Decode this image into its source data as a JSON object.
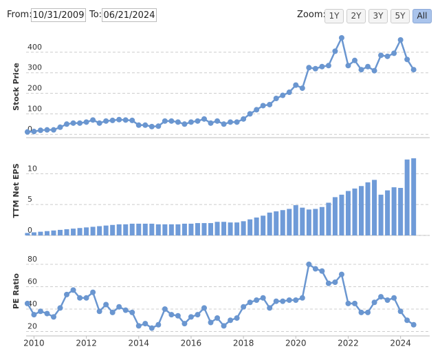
{
  "controls": {
    "from_label": "From:",
    "from": "10/31/2009",
    "to_label": "To:",
    "to": "06/21/2024",
    "zoom_label": "Zoom:",
    "zoom": [
      "1Y",
      "2Y",
      "3Y",
      "5Y",
      "All"
    ],
    "zoom_active": "All"
  },
  "chart_data": [
    {
      "type": "line",
      "y_label": "Stock Price",
      "color": "#6a96d0",
      "x": [
        2009.75,
        2010,
        2010.25,
        2010.5,
        2010.75,
        2011,
        2011.25,
        2011.5,
        2011.75,
        2012,
        2012.25,
        2012.5,
        2012.75,
        2013,
        2013.25,
        2013.5,
        2013.75,
        2014,
        2014.25,
        2014.5,
        2014.75,
        2015,
        2015.25,
        2015.5,
        2015.75,
        2016,
        2016.25,
        2016.5,
        2016.75,
        2017,
        2017.25,
        2017.5,
        2017.75,
        2018,
        2018.25,
        2018.5,
        2018.75,
        2019,
        2019.25,
        2019.5,
        2019.75,
        2020,
        2020.25,
        2020.5,
        2020.75,
        2021,
        2021.25,
        2021.5,
        2021.75,
        2022,
        2022.25,
        2022.5,
        2022.75,
        2023,
        2023.25,
        2023.5,
        2023.75,
        2024,
        2024.25,
        2024.5
      ],
      "values": [
        12,
        14,
        20,
        22,
        22,
        35,
        50,
        55,
        55,
        60,
        70,
        55,
        65,
        68,
        72,
        70,
        68,
        45,
        45,
        38,
        40,
        65,
        65,
        60,
        50,
        60,
        65,
        75,
        55,
        65,
        50,
        60,
        60,
        75,
        100,
        120,
        140,
        145,
        175,
        190,
        205,
        240,
        225,
        325,
        320,
        330,
        335,
        405,
        470,
        335,
        360,
        315,
        330,
        310,
        385,
        380,
        395,
        460,
        365,
        315
      ],
      "xlim": [
        2009.7,
        2024.85
      ],
      "ylim": [
        -16,
        480
      ],
      "yticks": [
        0,
        100,
        200,
        300,
        400
      ],
      "grid": true
    },
    {
      "type": "bar",
      "y_label": "TTM Net EPS",
      "color": "#6f9bd8",
      "x": [
        2009.75,
        2010,
        2010.25,
        2010.5,
        2010.75,
        2011,
        2011.25,
        2011.5,
        2011.75,
        2012,
        2012.25,
        2012.5,
        2012.75,
        2013,
        2013.25,
        2013.5,
        2013.75,
        2014,
        2014.25,
        2014.5,
        2014.75,
        2015,
        2015.25,
        2015.5,
        2015.75,
        2016,
        2016.25,
        2016.5,
        2016.75,
        2017,
        2017.25,
        2017.5,
        2017.75,
        2018,
        2018.25,
        2018.5,
        2018.75,
        2019,
        2019.25,
        2019.5,
        2019.75,
        2020,
        2020.25,
        2020.5,
        2020.75,
        2021,
        2021.25,
        2021.5,
        2021.75,
        2022,
        2022.25,
        2022.5,
        2022.75,
        2023,
        2023.25,
        2023.5,
        2023.75,
        2024,
        2024.25,
        2024.5
      ],
      "values": [
        0.4,
        0.5,
        0.6,
        0.7,
        0.8,
        0.9,
        1.0,
        1.1,
        1.2,
        1.3,
        1.4,
        1.5,
        1.6,
        1.7,
        1.8,
        1.8,
        1.9,
        1.9,
        1.9,
        1.9,
        1.8,
        1.8,
        1.8,
        1.8,
        1.9,
        1.9,
        2.0,
        2.0,
        2.0,
        2.2,
        2.2,
        2.1,
        2.1,
        2.3,
        2.6,
        2.9,
        3.2,
        3.7,
        3.9,
        4.1,
        4.3,
        4.9,
        4.5,
        4.2,
        4.3,
        4.6,
        5.3,
        6.2,
        6.6,
        7.2,
        7.6,
        8.0,
        8.6,
        9.0,
        6.6,
        7.3,
        7.8,
        7.7,
        12.3,
        12.5
      ],
      "xlim": [
        2009.7,
        2024.85
      ],
      "ylim": [
        0,
        14.5
      ],
      "yticks": [
        0,
        5,
        10
      ],
      "grid": true
    },
    {
      "type": "line",
      "y_label": "PE Ratio",
      "color": "#6a96d0",
      "x": [
        2009.75,
        2010,
        2010.25,
        2010.5,
        2010.75,
        2011,
        2011.25,
        2011.5,
        2011.75,
        2012,
        2012.25,
        2012.5,
        2012.75,
        2013,
        2013.25,
        2013.5,
        2013.75,
        2014,
        2014.25,
        2014.5,
        2014.75,
        2015,
        2015.25,
        2015.5,
        2015.75,
        2016,
        2016.25,
        2016.5,
        2016.75,
        2017,
        2017.25,
        2017.5,
        2017.75,
        2018,
        2018.25,
        2018.5,
        2018.75,
        2019,
        2019.25,
        2019.5,
        2019.75,
        2020,
        2020.25,
        2020.5,
        2020.75,
        2021,
        2021.25,
        2021.5,
        2021.75,
        2022,
        2022.25,
        2022.5,
        2022.75,
        2023,
        2023.25,
        2023.5,
        2023.75,
        2024,
        2024.25,
        2024.5
      ],
      "values": [
        45,
        35,
        38,
        36,
        33,
        41,
        53,
        57,
        50,
        50,
        55,
        38,
        44,
        37,
        42,
        39,
        37,
        25,
        27,
        23,
        26,
        40,
        35,
        34,
        27,
        33,
        35,
        41,
        28,
        32,
        25,
        30,
        32,
        42,
        46,
        48,
        50,
        41,
        47,
        47,
        48,
        48,
        50,
        80,
        76,
        74,
        63,
        64,
        71,
        45,
        45,
        37,
        37,
        46,
        51,
        48,
        50,
        38,
        30,
        26
      ],
      "xlim": [
        2009.7,
        2024.85
      ],
      "ylim": [
        16,
        96
      ],
      "yticks": [
        20,
        40,
        60,
        80
      ],
      "grid": true,
      "xticks": [
        2010,
        2012,
        2014,
        2016,
        2018,
        2020,
        2022,
        2024
      ]
    }
  ]
}
